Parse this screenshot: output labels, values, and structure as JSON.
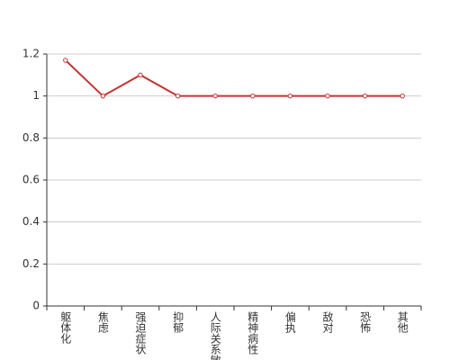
{
  "chart_data": {
    "type": "line",
    "categories": [
      "躯体化",
      "焦虑",
      "强迫症状",
      "抑郁",
      "人际关系敏感",
      "精神病性",
      "偏执",
      "敌对",
      "恐怖",
      "其他"
    ],
    "series": [
      {
        "color": "#c23531",
        "values": [
          1.17,
          1,
          1.1,
          1,
          1,
          1,
          1,
          1,
          1,
          1
        ]
      }
    ],
    "ylim": [
      0,
      1.2
    ],
    "yticks": [
      0,
      0.2,
      0.4,
      0.6,
      0.8,
      1,
      1.2
    ],
    "grid": true
  }
}
